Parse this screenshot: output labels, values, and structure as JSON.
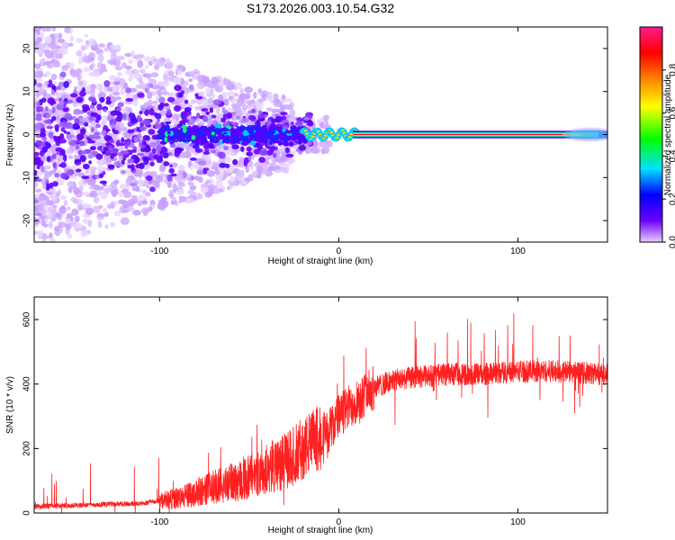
{
  "chart_data": {
    "title": "S173.2026.003.10.54.G32",
    "charts": [
      {
        "type": "heatmap",
        "name": "spectrogram",
        "xlabel": "Height of straight line (km)",
        "ylabel": "Frequency (Hz)",
        "xlim": [
          -170,
          150
        ],
        "ylim": [
          -25,
          25
        ],
        "xticks": [
          -100,
          0,
          100
        ],
        "xtick_labels": [
          "-100",
          "0",
          "100"
        ],
        "yticks": [
          -20,
          -10,
          0,
          10,
          20
        ],
        "ytick_labels": [
          "-20",
          "-10",
          "0",
          "10",
          "20"
        ],
        "colorbar": {
          "label": "Normalized spectral amplitude",
          "range": [
            0,
            1
          ],
          "ticks": [
            0.0,
            0.2,
            0.4,
            0.6,
            0.8
          ],
          "tick_labels": [
            "0.0",
            "0.2",
            "0.4",
            "0.6",
            "0.8"
          ],
          "colors": [
            "#e8ccff",
            "#6a00ff",
            "#0000ff",
            "#00e0ff",
            "#00ff00",
            "#ffff00",
            "#ff8000",
            "#ff0000",
            "#ff1a8c"
          ]
        },
        "features": {
          "carrier_line_frequency_hz": 0,
          "carrier_start_km": -20,
          "carrier_end_km": 150,
          "noise_region_end_km": -20,
          "noise_spread_hz_at_start": 25
        }
      },
      {
        "type": "line",
        "name": "snr",
        "xlabel": "Height of straight line (km)",
        "ylabel": "SNR (10 * v/v)",
        "xlim": [
          -170,
          150
        ],
        "ylim": [
          0,
          670
        ],
        "xticks": [
          -100,
          0,
          100
        ],
        "xtick_labels": [
          "-100",
          "0",
          "100"
        ],
        "yticks": [
          0,
          200,
          400,
          600
        ],
        "ytick_labels": [
          "0",
          "200",
          "400",
          "600"
        ],
        "color": "#ff2020",
        "series": [
          {
            "name": "SNR",
            "envelope_x": [
              -170,
              -140,
              -110,
              -90,
              -70,
              -50,
              -30,
              -20,
              -12,
              -5,
              0,
              10,
              20,
              30,
              40,
              60,
              80,
              100,
              120,
              150
            ],
            "envelope_y": [
              20,
              25,
              30,
              45,
              80,
              110,
              160,
              200,
              230,
              260,
              300,
              350,
              390,
              410,
              420,
              430,
              430,
              440,
              440,
              430
            ]
          }
        ]
      }
    ]
  }
}
